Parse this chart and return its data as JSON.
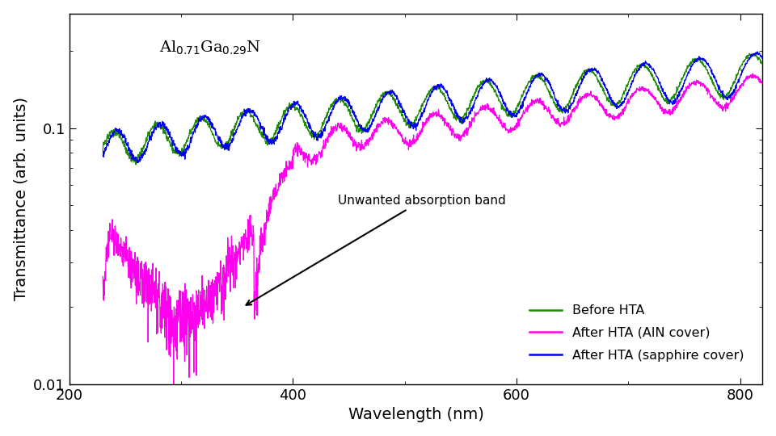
{
  "xlabel": "Wavelength (nm)",
  "ylabel": "Transmittance (arb. units)",
  "xlim": [
    200,
    820
  ],
  "ylim": [
    0.01,
    0.28
  ],
  "annotation_text": "Unwanted absorption band",
  "legend_labels": [
    "Before HTA",
    "After HTA (AlN cover)",
    "After HTA (sapphire cover)"
  ],
  "colors": {
    "before_hta": "#1a8c00",
    "after_hta_aln": "#ff00ee",
    "after_hta_sapphire": "#0000ee"
  },
  "background_color": "#ffffff",
  "formula_text": "Al$_{0.71}$Ga$_{0.29}$N"
}
